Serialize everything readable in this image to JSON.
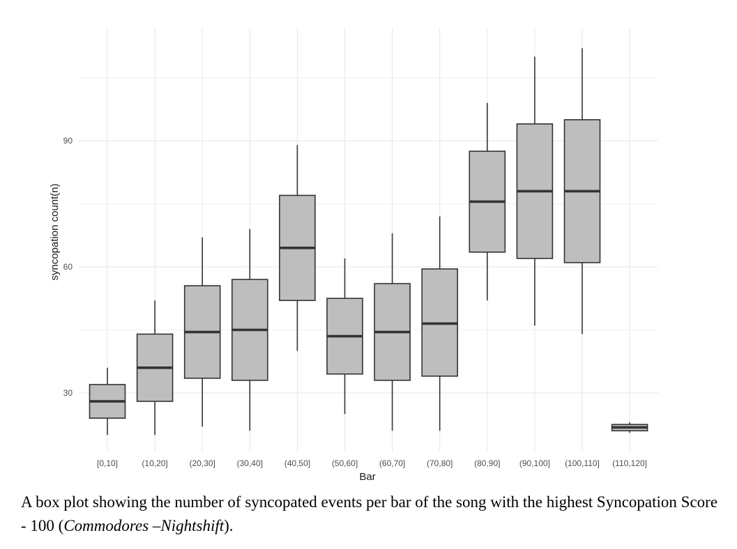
{
  "chart_data": {
    "type": "box",
    "xlabel": "Bar",
    "ylabel": "syncopation count(n)",
    "ylim": [
      16,
      119
    ],
    "yticks": [
      30,
      60,
      90
    ],
    "grid": true,
    "categories": [
      "[0,10]",
      "(10,20]",
      "(20,30]",
      "(30,40]",
      "(40,50]",
      "(50,60]",
      "(60,70]",
      "(70,80]",
      "(80,90]",
      "(90,100]",
      "(100,110]",
      "(110,120]"
    ],
    "boxes": [
      {
        "category": "[0,10]",
        "whisker_low": 20,
        "q1": 24,
        "median": 28,
        "q3": 32,
        "whisker_high": 36
      },
      {
        "category": "(10,20]",
        "whisker_low": 20,
        "q1": 28,
        "median": 36,
        "q3": 44,
        "whisker_high": 52
      },
      {
        "category": "(20,30]",
        "whisker_low": 22,
        "q1": 33.5,
        "median": 44.5,
        "q3": 55.5,
        "whisker_high": 67
      },
      {
        "category": "(30,40]",
        "whisker_low": 21,
        "q1": 33,
        "median": 45,
        "q3": 57,
        "whisker_high": 69
      },
      {
        "category": "(40,50]",
        "whisker_low": 40,
        "q1": 52,
        "median": 64.5,
        "q3": 77,
        "whisker_high": 89
      },
      {
        "category": "(50,60]",
        "whisker_low": 25,
        "q1": 34.5,
        "median": 43.5,
        "q3": 52.5,
        "whisker_high": 62
      },
      {
        "category": "(60,70]",
        "whisker_low": 21,
        "q1": 33,
        "median": 44.5,
        "q3": 56,
        "whisker_high": 68
      },
      {
        "category": "(70,80]",
        "whisker_low": 21,
        "q1": 34,
        "median": 46.5,
        "q3": 59.5,
        "whisker_high": 72
      },
      {
        "category": "(80,90]",
        "whisker_low": 52,
        "q1": 63.5,
        "median": 75.5,
        "q3": 87.5,
        "whisker_high": 99
      },
      {
        "category": "(90,100]",
        "whisker_low": 46,
        "q1": 62,
        "median": 78,
        "q3": 94,
        "whisker_high": 110
      },
      {
        "category": "(100,110]",
        "whisker_low": 44,
        "q1": 61,
        "median": 78,
        "q3": 95,
        "whisker_high": 112
      },
      {
        "category": "(110,120]",
        "whisker_low": 20.5,
        "q1": 21,
        "median": 21.8,
        "q3": 22.5,
        "whisker_high": 23
      }
    ],
    "colors": {
      "box_fill": "#bebebe",
      "box_stroke": "#333333",
      "grid": "#e6e6e6"
    }
  },
  "caption": {
    "prefix": "A box plot showing the number of syncopated events per bar of the song with the highest Syncopation Score - 100 (",
    "italic": "Commodores –Nightshift",
    "suffix": ")."
  }
}
